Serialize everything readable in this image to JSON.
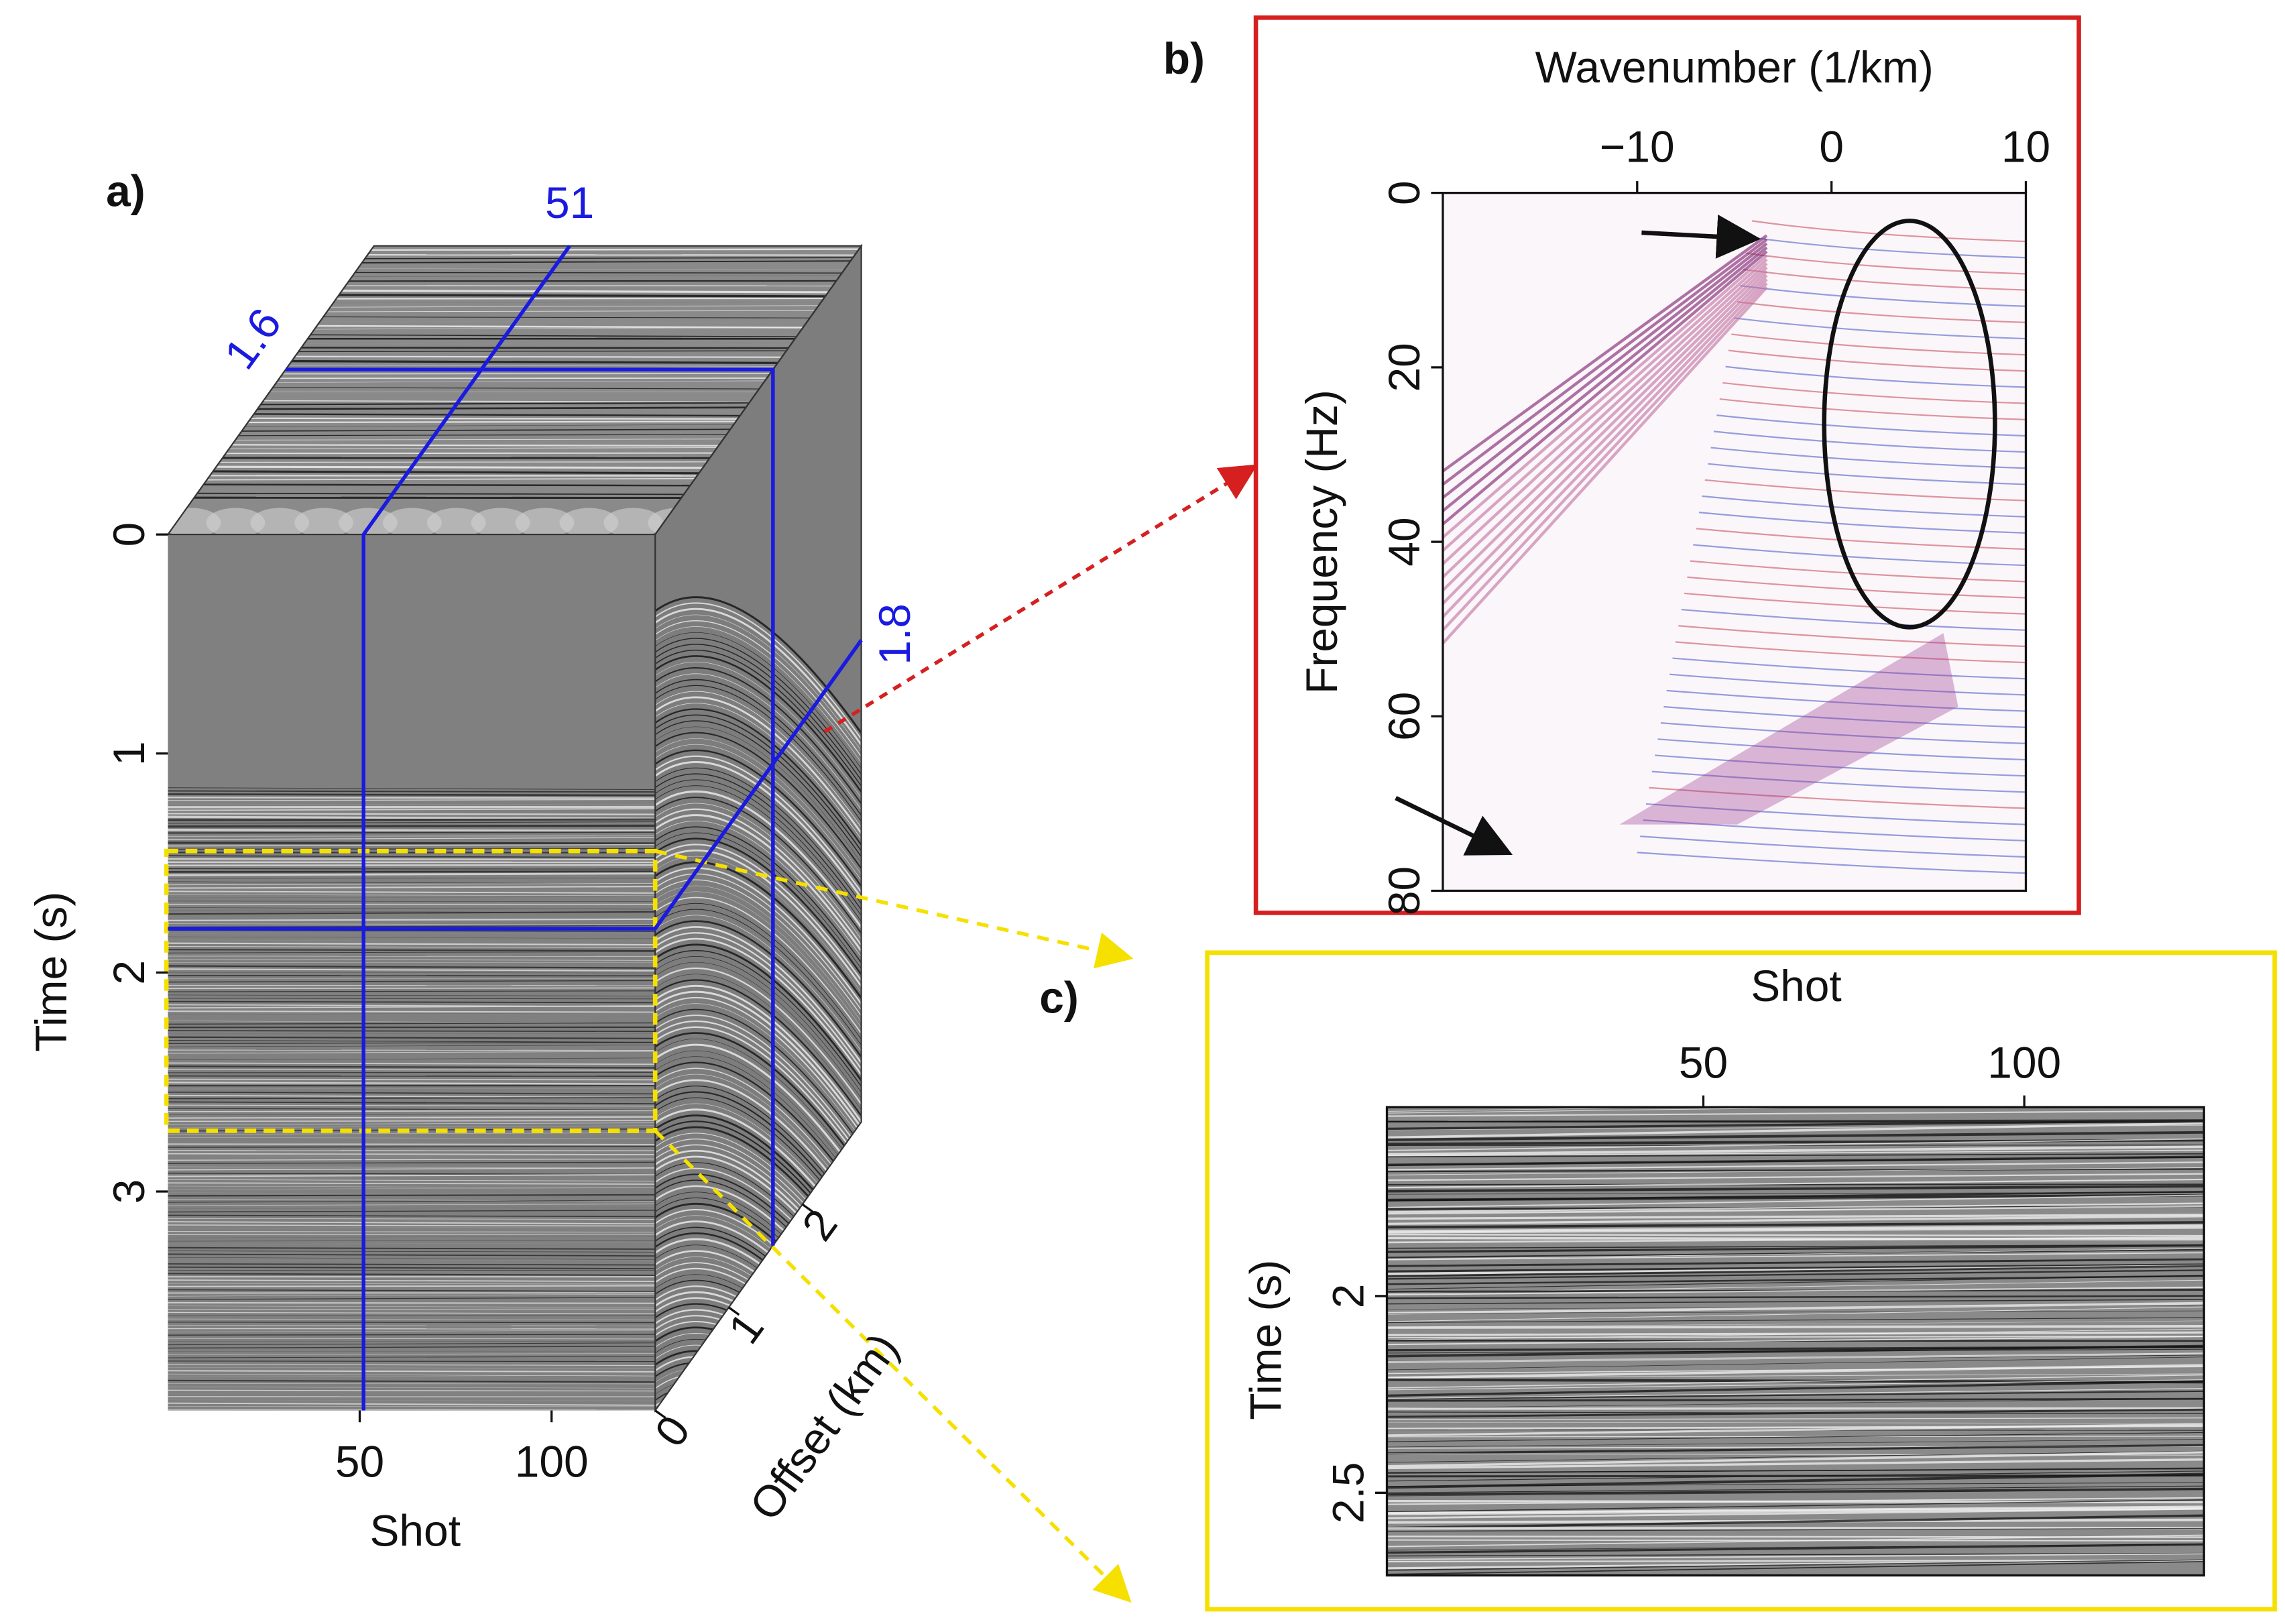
{
  "panel_a": {
    "label": "a)",
    "time_axis": {
      "title": "Time (s)",
      "lim": [
        0,
        4
      ],
      "ticks": [
        0,
        1,
        2,
        3
      ]
    },
    "shot_axis": {
      "title": "Shot",
      "lim": [
        0,
        127
      ],
      "ticks": [
        50,
        100
      ]
    },
    "offset_axis": {
      "title": "Offset (km)",
      "lim": [
        0,
        2.8
      ],
      "ticks": [
        0,
        1,
        2
      ]
    },
    "slices": {
      "shot": 51,
      "time": 1.8,
      "offset": 1.6
    }
  },
  "panel_b": {
    "label": "b)",
    "x_axis": {
      "title": "Wavenumber (1/km)",
      "lim": [
        -20,
        10
      ],
      "ticks": [
        {
          "value": -10,
          "label": "−10"
        },
        0,
        10
      ]
    },
    "y_axis": {
      "title": "Frequency (Hz)",
      "lim": [
        0,
        80
      ],
      "ticks": [
        0,
        20,
        40,
        60,
        80
      ]
    }
  },
  "panel_c": {
    "label": "c)",
    "x_axis": {
      "title": "Shot",
      "lim": [
        0.7,
        128
      ],
      "ticks": [
        50,
        100
      ]
    },
    "y_axis": {
      "title": "Time (s)",
      "lim": [
        1.52,
        2.71
      ],
      "ticks": [
        2,
        2.5
      ]
    }
  }
}
